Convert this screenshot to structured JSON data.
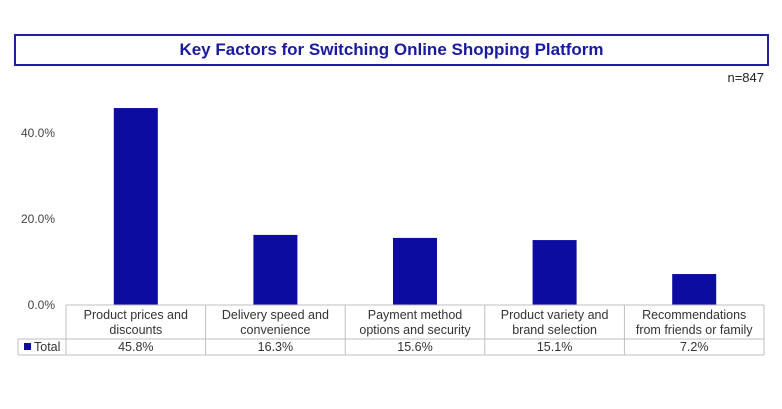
{
  "title": "Key Factors for Switching Online Shopping Platform",
  "sample_note": "n=847",
  "chart_data": {
    "type": "bar",
    "title": "Key Factors for Switching Online Shopping Platform",
    "categories": [
      [
        "Product prices and",
        "discounts"
      ],
      [
        "Delivery speed and",
        "convenience"
      ],
      [
        "Payment method",
        "options and security"
      ],
      [
        "Product variety and",
        "brand selection"
      ],
      [
        "Recommendations",
        "from friends or family"
      ]
    ],
    "series": [
      {
        "name": "Total",
        "values": [
          45.8,
          16.3,
          15.6,
          15.1,
          7.2
        ],
        "labels": [
          "45.8%",
          "16.3%",
          "15.6%",
          "15.1%",
          "7.2%"
        ],
        "color": "#0c0ca0"
      }
    ],
    "yticks": [
      "0.0%",
      "20.0%",
      "40.0%"
    ],
    "ytick_values": [
      0,
      20,
      40
    ],
    "ylim": [
      0,
      50
    ],
    "grid": false,
    "legend": "data-table"
  }
}
